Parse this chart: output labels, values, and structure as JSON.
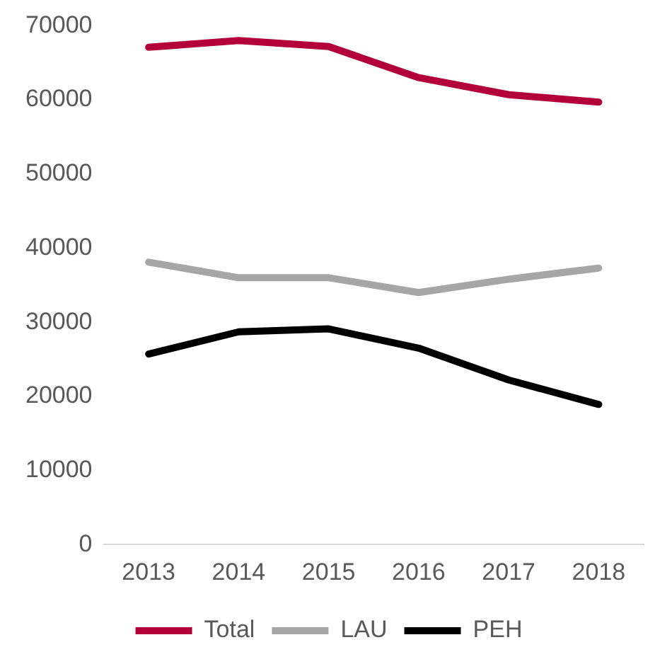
{
  "chart_data": {
    "type": "line",
    "categories": [
      "2013",
      "2014",
      "2015",
      "2016",
      "2017",
      "2018"
    ],
    "series": [
      {
        "name": "Total",
        "color": "#b3003b",
        "values": [
          67100,
          68000,
          67200,
          63000,
          60700,
          59700
        ]
      },
      {
        "name": "LAU",
        "color": "#a6a6a6",
        "values": [
          38100,
          36000,
          36000,
          34000,
          35800,
          37300
        ]
      },
      {
        "name": "PEH",
        "color": "#000000",
        "values": [
          25700,
          28700,
          29100,
          26500,
          22200,
          18900
        ]
      }
    ],
    "ylim": [
      0,
      70000
    ],
    "yticks": [
      0,
      10000,
      20000,
      30000,
      40000,
      50000,
      60000,
      70000
    ],
    "grid": false,
    "legend": "bottom",
    "marker": "none",
    "line_style": "solid"
  }
}
